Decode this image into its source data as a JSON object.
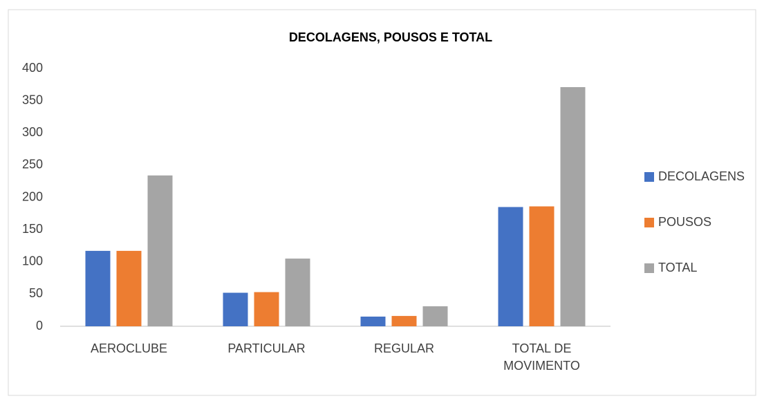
{
  "chart_data": {
    "type": "bar",
    "title": "DECOLAGENS, POUSOS E TOTAL",
    "categories": [
      "AEROCLUBE",
      "PARTICULAR",
      "REGULAR",
      "TOTAL DE MOVIMENTO"
    ],
    "series": [
      {
        "name": "DECOLAGENS",
        "color": "#4472c4",
        "values": [
          117,
          52,
          15,
          185
        ]
      },
      {
        "name": "POUSOS",
        "color": "#ed7d31",
        "values": [
          117,
          53,
          16,
          186
        ]
      },
      {
        "name": "TOTAL",
        "color": "#a5a5a5",
        "values": [
          234,
          105,
          31,
          371
        ]
      }
    ],
    "ylim": [
      0,
      400
    ],
    "yticks": [
      0,
      50,
      100,
      150,
      200,
      250,
      300,
      350,
      400
    ],
    "grid": false,
    "legend": "right"
  }
}
